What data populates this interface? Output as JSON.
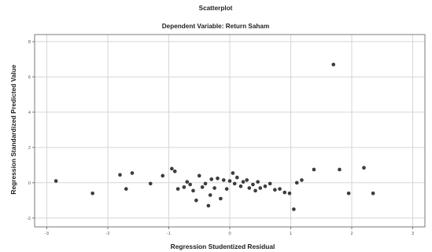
{
  "chart_data": {
    "type": "scatter",
    "title": "Scatterplot",
    "subtitle": "Dependent Variable: Return Saham",
    "xlabel": "Regression Studentized Residual",
    "ylabel": "Regression Standardized Predicted Value",
    "xlim": [
      -3.2,
      3.2
    ],
    "ylim": [
      -2.5,
      8.4
    ],
    "x_ticks": [
      -3,
      -2,
      -1,
      0,
      1,
      2,
      3
    ],
    "y_ticks": [
      -2,
      0,
      2,
      4,
      6,
      8
    ],
    "x_tick_labels": [
      "-3",
      "-2",
      "-1",
      "0",
      "1",
      "2",
      "3"
    ],
    "y_tick_labels": [
      "-2",
      "0",
      "2",
      "4",
      "6",
      "8"
    ],
    "grid": true,
    "series": [
      {
        "points": [
          {
            "x": -2.85,
            "y": 0.1
          },
          {
            "x": -2.25,
            "y": -0.6
          },
          {
            "x": -1.8,
            "y": 0.45
          },
          {
            "x": -1.7,
            "y": -0.35
          },
          {
            "x": -1.6,
            "y": 0.55
          },
          {
            "x": -1.3,
            "y": -0.05
          },
          {
            "x": -1.1,
            "y": 0.4
          },
          {
            "x": -0.95,
            "y": 0.8
          },
          {
            "x": -0.9,
            "y": 0.65
          },
          {
            "x": -0.85,
            "y": -0.35
          },
          {
            "x": -0.75,
            "y": -0.25
          },
          {
            "x": -0.7,
            "y": 0.05
          },
          {
            "x": -0.65,
            "y": -0.1
          },
          {
            "x": -0.6,
            "y": -0.45
          },
          {
            "x": -0.55,
            "y": -1.0
          },
          {
            "x": -0.5,
            "y": 0.4
          },
          {
            "x": -0.45,
            "y": -0.25
          },
          {
            "x": -0.4,
            "y": -0.05
          },
          {
            "x": -0.35,
            "y": -1.3
          },
          {
            "x": -0.32,
            "y": -0.7
          },
          {
            "x": -0.3,
            "y": 0.2
          },
          {
            "x": -0.25,
            "y": -0.3
          },
          {
            "x": -0.2,
            "y": 0.25
          },
          {
            "x": -0.15,
            "y": -0.9
          },
          {
            "x": -0.1,
            "y": 0.15
          },
          {
            "x": -0.05,
            "y": -0.35
          },
          {
            "x": 0.0,
            "y": 0.1
          },
          {
            "x": 0.05,
            "y": 0.55
          },
          {
            "x": 0.08,
            "y": -0.05
          },
          {
            "x": 0.12,
            "y": 0.3
          },
          {
            "x": 0.18,
            "y": -0.2
          },
          {
            "x": 0.22,
            "y": 0.05
          },
          {
            "x": 0.28,
            "y": 0.15
          },
          {
            "x": 0.32,
            "y": -0.3
          },
          {
            "x": 0.38,
            "y": -0.1
          },
          {
            "x": 0.42,
            "y": -0.45
          },
          {
            "x": 0.46,
            "y": 0.05
          },
          {
            "x": 0.5,
            "y": -0.3
          },
          {
            "x": 0.58,
            "y": -0.2
          },
          {
            "x": 0.66,
            "y": -0.05
          },
          {
            "x": 0.74,
            "y": -0.4
          },
          {
            "x": 0.82,
            "y": -0.35
          },
          {
            "x": 0.9,
            "y": -0.55
          },
          {
            "x": 0.98,
            "y": -0.6
          },
          {
            "x": 1.05,
            "y": -1.5
          },
          {
            "x": 1.1,
            "y": 0.0
          },
          {
            "x": 1.18,
            "y": 0.15
          },
          {
            "x": 1.38,
            "y": 0.75
          },
          {
            "x": 1.7,
            "y": 6.7
          },
          {
            "x": 1.8,
            "y": 0.75
          },
          {
            "x": 1.95,
            "y": -0.6
          },
          {
            "x": 2.2,
            "y": 0.85
          },
          {
            "x": 2.35,
            "y": -0.6
          }
        ]
      }
    ]
  }
}
